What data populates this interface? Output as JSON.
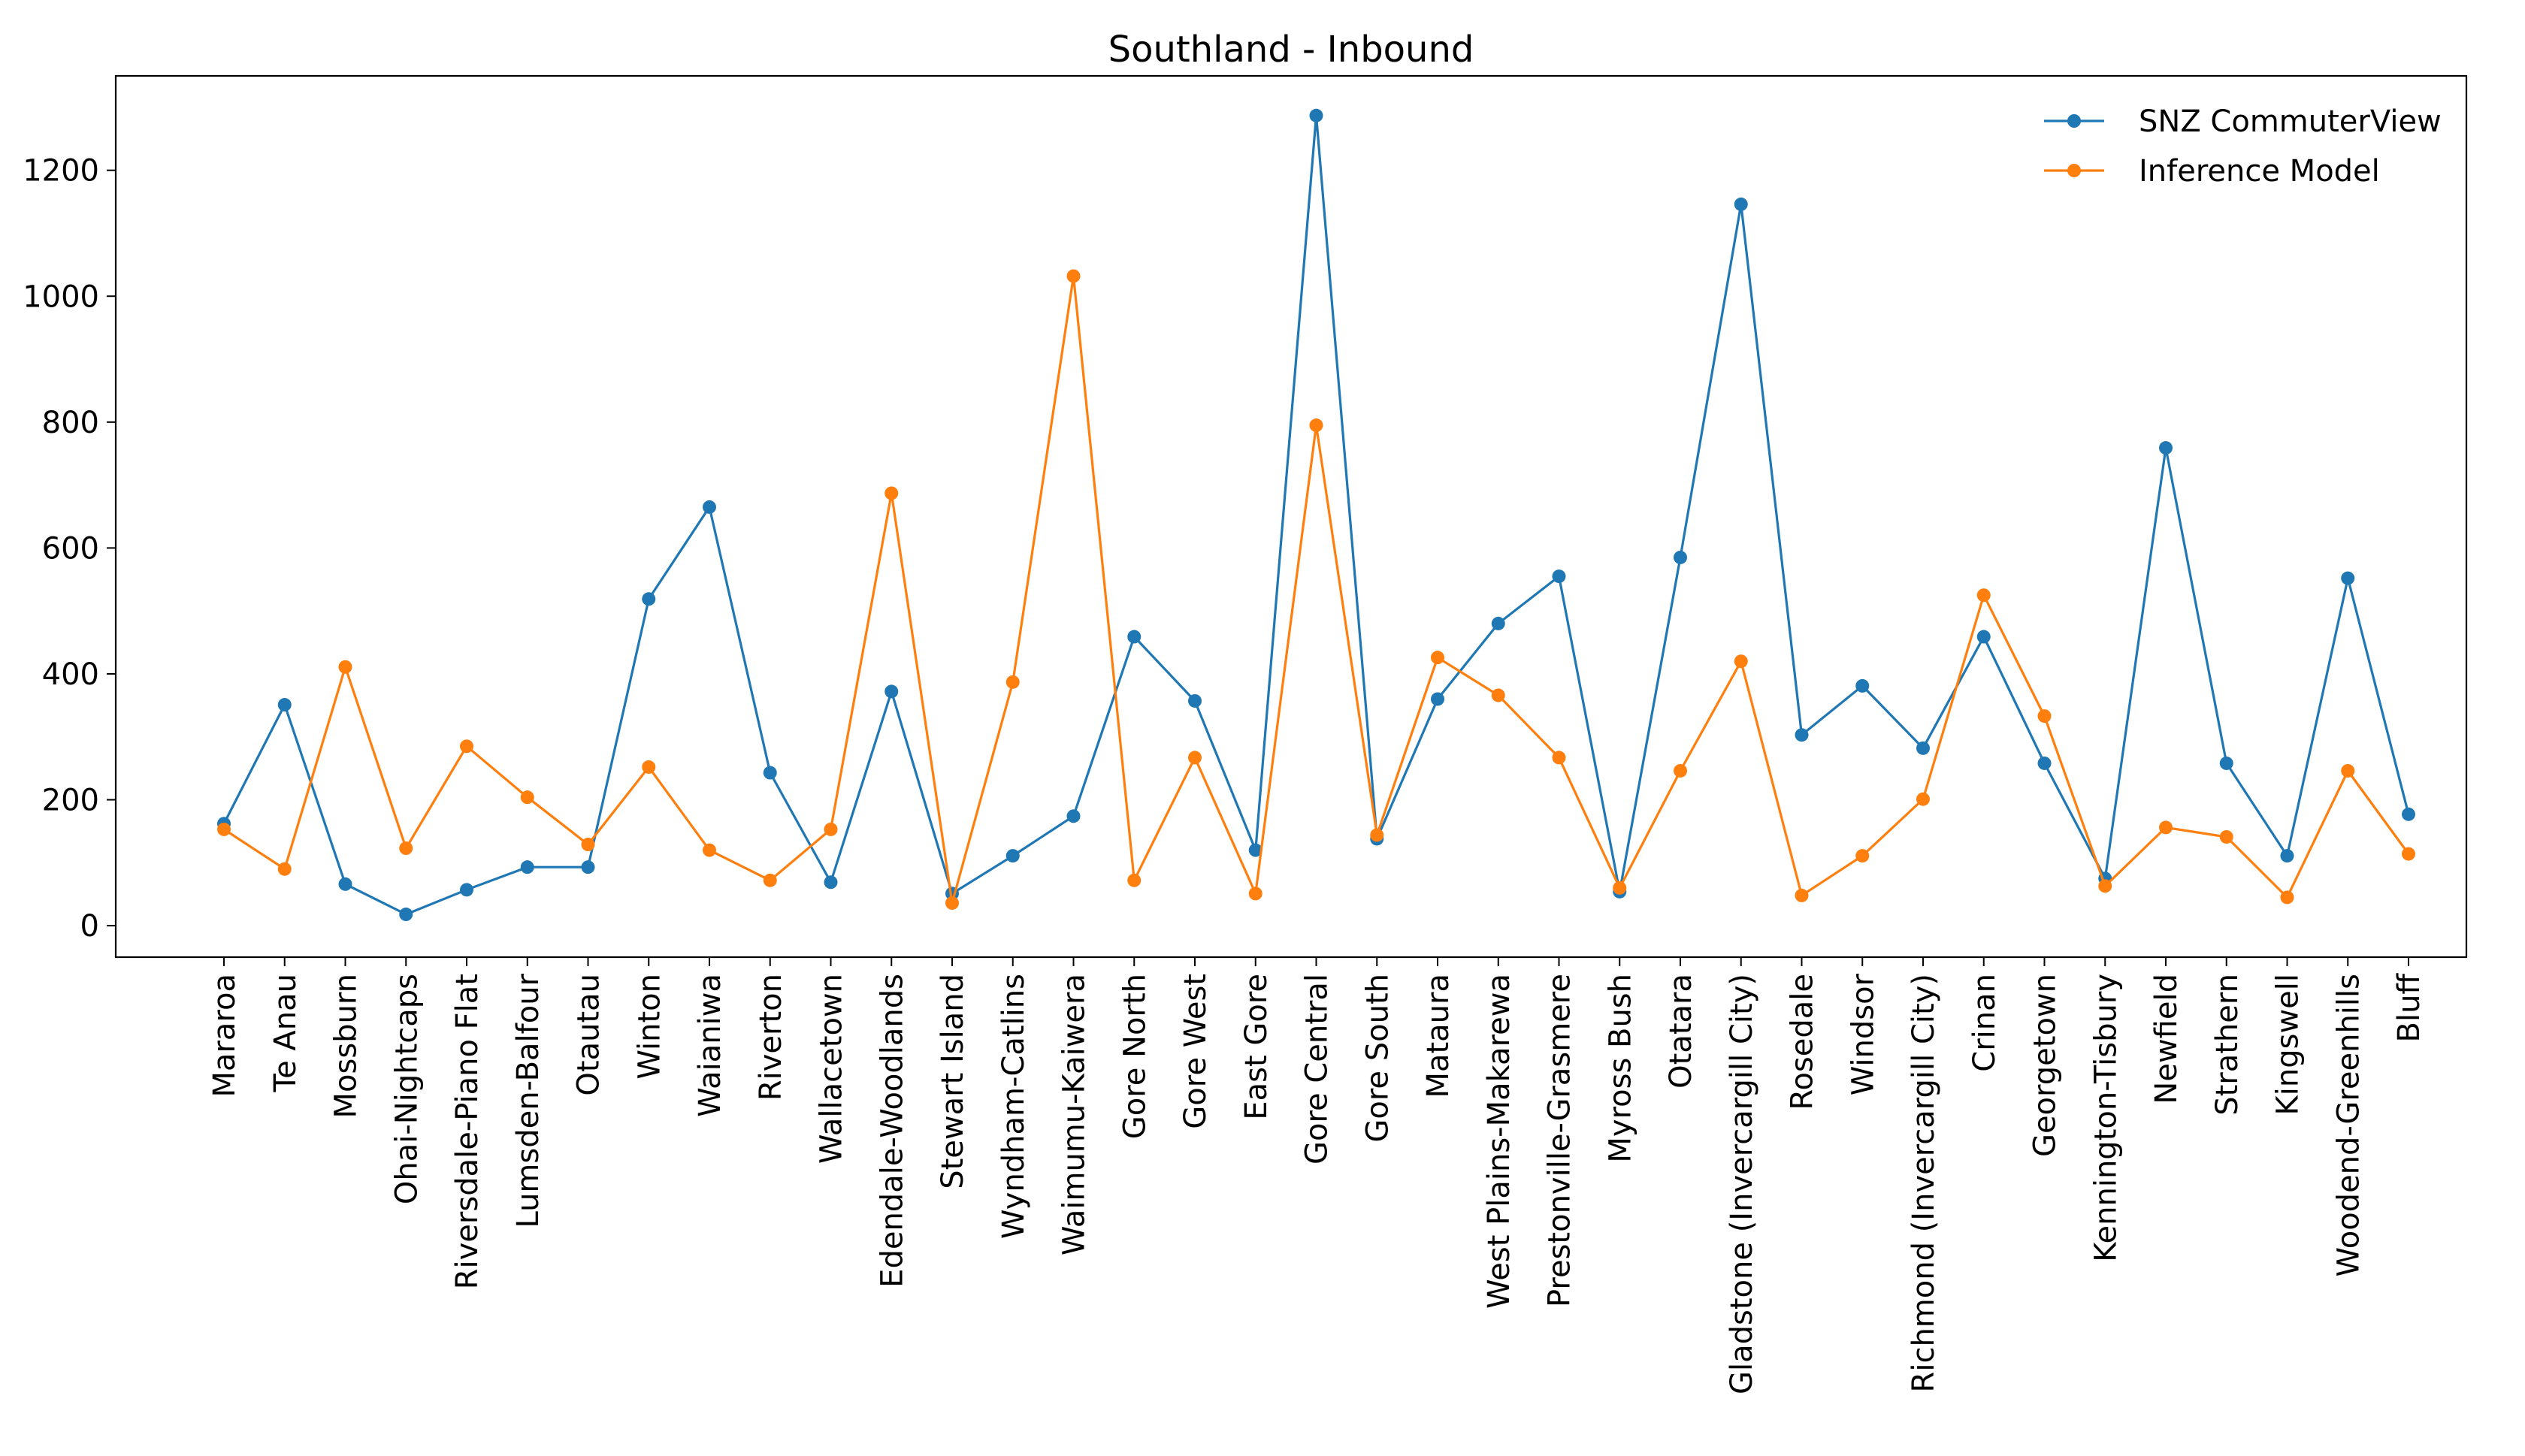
{
  "chart_data": {
    "type": "line",
    "title": "Southland - Inbound",
    "xlabel": "",
    "ylabel": "",
    "ylim": [
      -50,
      1350
    ],
    "yticks": [
      0,
      200,
      400,
      600,
      800,
      1000,
      1200
    ],
    "grid": false,
    "legend_position": "top-right",
    "categories": [
      "Mararoa",
      "Te Anau",
      "Mossburn",
      "Ohai-Nightcaps",
      "Riversdale-Piano Flat",
      "Lumsden-Balfour",
      "Otautau",
      "Winton",
      "Waianiwa",
      "Riverton",
      "Wallacetown",
      "Edendale-Woodlands",
      "Stewart Island",
      "Wyndham-Catlins",
      "Waimumu-Kaiwera",
      "Gore North",
      "Gore West",
      "East Gore",
      "Gore Central",
      "Gore South",
      "Mataura",
      "West Plains-Makarewa",
      "Prestonville-Grasmere",
      "Myross Bush",
      "Otatara",
      "Gladstone (Invercargill City)",
      "Rosedale",
      "Windsor",
      "Richmond (Invercargill City)",
      "Crinan",
      "Georgetown",
      "Kennington-Tisbury",
      "Newfield",
      "Strathern",
      "Kingswell",
      "Woodend-Greenhills",
      "Bluff"
    ],
    "series": [
      {
        "name": "SNZ CommuterView",
        "color": "#1f77b4",
        "values": [
          162,
          351,
          66,
          18,
          57,
          93,
          93,
          519,
          665,
          243,
          69,
          372,
          51,
          111,
          174,
          459,
          357,
          120,
          1287,
          138,
          360,
          480,
          555,
          54,
          585,
          1146,
          303,
          381,
          282,
          459,
          258,
          75,
          759,
          258,
          111,
          552,
          177
        ]
      },
      {
        "name": "Inference Model",
        "color": "#ff7f0e",
        "values": [
          153,
          90,
          411,
          123,
          285,
          204,
          129,
          252,
          120,
          72,
          153,
          687,
          36,
          387,
          1032,
          72,
          267,
          51,
          795,
          144,
          426,
          366,
          267,
          60,
          246,
          420,
          48,
          111,
          201,
          525,
          333,
          63,
          156,
          141,
          45,
          246,
          114
        ]
      }
    ]
  }
}
